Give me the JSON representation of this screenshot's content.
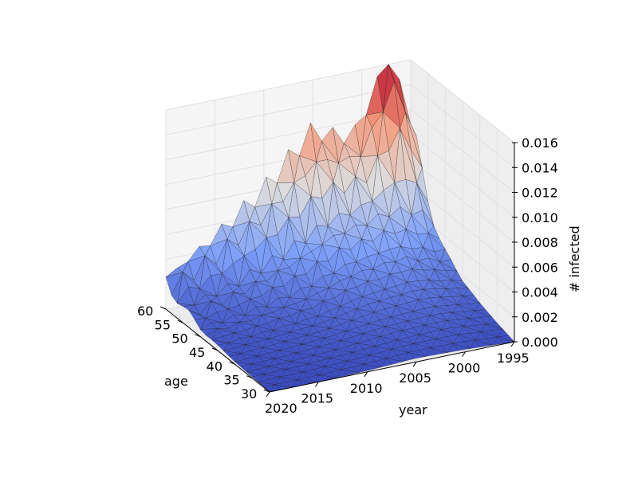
{
  "chart_data": {
    "type": "surface3d",
    "title": "",
    "xlabel": "year",
    "ylabel": "age",
    "zlabel": "# infected",
    "x_ticks": [
      "2015",
      "2010",
      "2005",
      "2000",
      "1995"
    ],
    "y_ticks": [
      "60",
      "55",
      "50",
      "45",
      "40",
      "35",
      "30"
    ],
    "z_ticks": [
      "0.000",
      "0.002",
      "0.004",
      "0.006",
      "0.008",
      "0.010",
      "0.012",
      "0.014",
      "0.016"
    ],
    "x_corner_label": "2020",
    "xlim": [
      1995,
      2020
    ],
    "ylim": [
      30,
      60
    ],
    "zlim": [
      0,
      0.016
    ],
    "grid": true,
    "colormap": "coolwarm",
    "colors": {
      "low": "#3b4cc0",
      "mid": "#dddddd",
      "high": "#b40426",
      "pane": "#f2f2f2",
      "grid": "#e0e0e0"
    },
    "peak": {
      "year": 1997,
      "age": 60,
      "value": 0.0162
    },
    "series": [
      {
        "year": 1995,
        "values_by_age": [
          0.0,
          0.0004,
          0.0009,
          0.0016,
          0.0028,
          0.0046,
          0.0062
        ]
      },
      {
        "year": 2000,
        "values_by_age": [
          0.0002,
          0.0008,
          0.0014,
          0.0024,
          0.004,
          0.0066,
          0.01
        ]
      },
      {
        "year": 2005,
        "values_by_age": [
          0.0003,
          0.0007,
          0.0012,
          0.002,
          0.0034,
          0.0058,
          0.012
        ]
      },
      {
        "year": 2010,
        "values_by_age": [
          0.0001,
          0.0004,
          0.0007,
          0.0011,
          0.002,
          0.0038,
          0.008
        ]
      },
      {
        "year": 2015,
        "values_by_age": [
          0.0,
          0.0002,
          0.0004,
          0.0007,
          0.0012,
          0.0022,
          0.005
        ]
      },
      {
        "year": 2020,
        "values_by_age": [
          0.0,
          0.0001,
          0.0002,
          0.0004,
          0.0007,
          0.0012,
          0.0025
        ]
      }
    ]
  }
}
